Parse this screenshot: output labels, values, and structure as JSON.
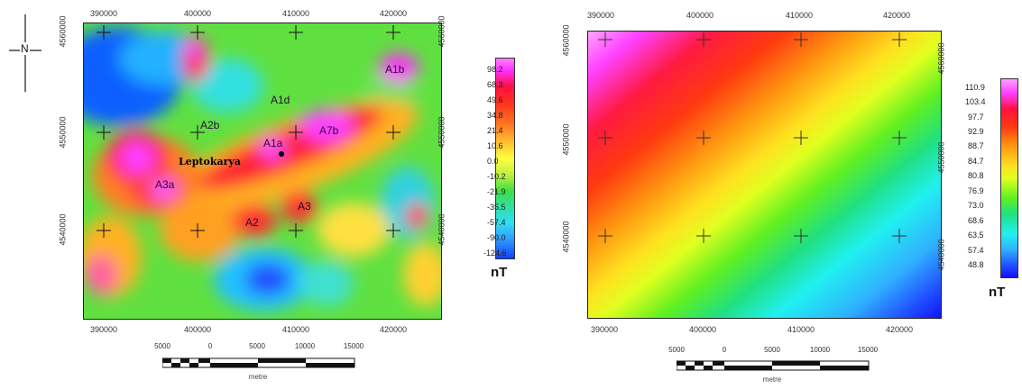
{
  "north_arrow": {
    "letter": "N"
  },
  "left_map": {
    "x_ticks": [
      "390000",
      "400000",
      "410000",
      "420000"
    ],
    "y_ticks": [
      "4560000",
      "4550000",
      "4540000"
    ],
    "place_label": "Leptokarya",
    "anomaly_labels": [
      "A1b",
      "A1d",
      "A2b",
      "A1a",
      "A7b",
      "A3a",
      "A2",
      "A3"
    ],
    "colorbar": {
      "labels": [
        "98.2",
        "68.3",
        "49.6",
        "34.8",
        "21.4",
        "10.6",
        "0.0",
        "-10.2",
        "-21.9",
        "-35.5",
        "-57.4",
        "-90.0",
        "-124.6"
      ],
      "unit": "nT"
    },
    "scale_bar": {
      "labels": [
        "5000",
        "0",
        "5000",
        "10000",
        "15000"
      ],
      "unit": "metre"
    }
  },
  "right_map": {
    "x_ticks": [
      "390000",
      "400000",
      "410000",
      "420000"
    ],
    "y_ticks": [
      "4560000",
      "4550000",
      "4540000"
    ],
    "colorbar": {
      "labels": [
        "110.9",
        "103.4",
        "97.7",
        "92.9",
        "88.7",
        "84.7",
        "80.8",
        "76.9",
        "73.0",
        "68.6",
        "63.5",
        "57.4",
        "48.8"
      ],
      "unit": "nT"
    },
    "scale_bar": {
      "labels": [
        "5000",
        "0",
        "5000",
        "10000",
        "15000"
      ],
      "unit": "metre"
    }
  },
  "colors": {
    "scale_high": "#ff00ff",
    "scale_mid": "#ffff00",
    "scale_low": "#0000ff"
  }
}
